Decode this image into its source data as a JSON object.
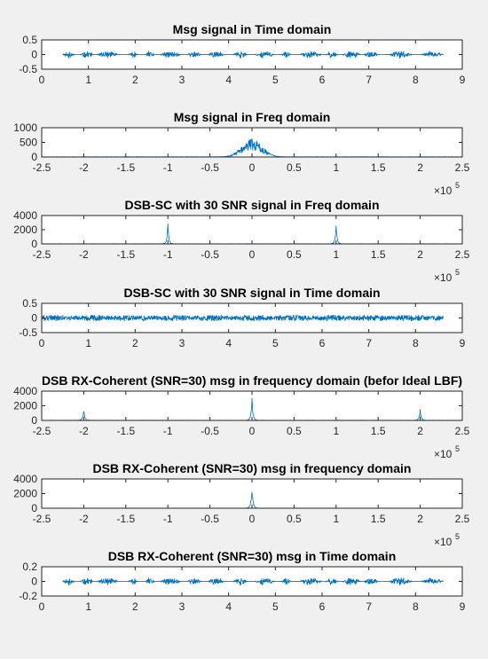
{
  "colors": {
    "background": "#f0f0f0",
    "axes": "#ffffff",
    "axis_line": "#262626",
    "trace": "#0072bd"
  },
  "chart_data": [
    {
      "type": "line",
      "title": "Msg signal in Time domain",
      "xlim": [
        0,
        9
      ],
      "ylim": [
        -0.5,
        0.5
      ],
      "xticks": [
        "0",
        "1",
        "2",
        "3",
        "4",
        "5",
        "6",
        "7",
        "8",
        "9"
      ],
      "yticks": [
        "-0.5",
        "0",
        "0.5"
      ],
      "x_multiplier": "",
      "signal": {
        "kind": "time",
        "start": 0.45,
        "end": 8.6,
        "amplitude": 0.13,
        "seed": 11
      }
    },
    {
      "type": "line",
      "title": "Msg signal in Freq domain",
      "xlim": [
        -2.5,
        2.5
      ],
      "ylim": [
        0,
        1000
      ],
      "xticks": [
        "-2.5",
        "-2",
        "-1.5",
        "-1",
        "-0.5",
        "0",
        "0.5",
        "1",
        "1.5",
        "2",
        "2.5"
      ],
      "yticks": [
        "0",
        "500",
        "1000"
      ],
      "x_multiplier": "×10",
      "x_multiplier_exp": "5",
      "signal": {
        "kind": "freq",
        "peaks": [
          0
        ],
        "peak_height": 620,
        "width": 0.12,
        "floor": 8,
        "seed": 23
      }
    },
    {
      "type": "line",
      "title": "DSB-SC with 30 SNR signal in Freq domain",
      "xlim": [
        -2.5,
        2.5
      ],
      "ylim": [
        0,
        4000
      ],
      "xticks": [
        "-2.5",
        "-2",
        "-1.5",
        "-1",
        "-0.5",
        "0",
        "0.5",
        "1",
        "1.5",
        "2",
        "2.5"
      ],
      "yticks": [
        "0",
        "2000",
        "4000"
      ],
      "x_multiplier": "×10",
      "x_multiplier_exp": "5",
      "signal": {
        "kind": "freq",
        "peaks": [
          -1,
          1
        ],
        "peak_height": 3000,
        "width": 0.01,
        "floor": 25,
        "seed": 37
      }
    },
    {
      "type": "line",
      "title": "DSB-SC with 30 SNR signal in Time domain",
      "xlim": [
        0,
        9
      ],
      "ylim": [
        -0.5,
        0.5
      ],
      "xticks": [
        "0",
        "1",
        "2",
        "3",
        "4",
        "5",
        "6",
        "7",
        "8",
        "9"
      ],
      "yticks": [
        "-0.5",
        "0",
        "0.5"
      ],
      "x_multiplier": "",
      "signal": {
        "kind": "noise",
        "start": 0,
        "end": 8.6,
        "amplitude": 0.1,
        "seed": 41
      }
    },
    {
      "type": "line",
      "title": "DSB RX-Coherent (SNR=30) msg in frequency domain (befor Ideal LBF)",
      "xlim": [
        -2.5,
        2.5
      ],
      "ylim": [
        0,
        4000
      ],
      "xticks": [
        "-2.5",
        "-2",
        "-1.5",
        "-1",
        "-0.5",
        "0",
        "0.5",
        "1",
        "1.5",
        "2",
        "2.5"
      ],
      "yticks": [
        "0",
        "2000",
        "4000"
      ],
      "x_multiplier": "×10",
      "x_multiplier_exp": "5",
      "signal": {
        "kind": "freq",
        "peaks": [
          -2,
          0,
          2
        ],
        "peak_heights": [
          1500,
          3000,
          1500
        ],
        "width": 0.012,
        "floor": 25,
        "seed": 53
      }
    },
    {
      "type": "line",
      "title": "DSB RX-Coherent (SNR=30) msg in frequency domain",
      "xlim": [
        -2.5,
        2.5
      ],
      "ylim": [
        0,
        4000
      ],
      "xticks": [
        "-2.5",
        "-2",
        "-1.5",
        "-1",
        "-0.5",
        "0",
        "0.5",
        "1",
        "1.5",
        "2",
        "2.5"
      ],
      "yticks": [
        "0",
        "2000",
        "4000"
      ],
      "x_multiplier": "×10",
      "x_multiplier_exp": "5",
      "signal": {
        "kind": "freq",
        "peaks": [
          0
        ],
        "peak_height": 3000,
        "width": 0.012,
        "floor": 0,
        "seed": 67
      }
    },
    {
      "type": "line",
      "title": "DSB RX-Coherent (SNR=30) msg in Time domain",
      "xlim": [
        0,
        9
      ],
      "ylim": [
        -0.2,
        0.2
      ],
      "xticks": [
        "0",
        "1",
        "2",
        "3",
        "4",
        "5",
        "6",
        "7",
        "8",
        "9"
      ],
      "yticks": [
        "-0.2",
        "0",
        "0.2"
      ],
      "x_multiplier": "",
      "signal": {
        "kind": "time",
        "start": 0.45,
        "end": 8.6,
        "amplitude": 0.055,
        "seed": 11
      }
    }
  ]
}
